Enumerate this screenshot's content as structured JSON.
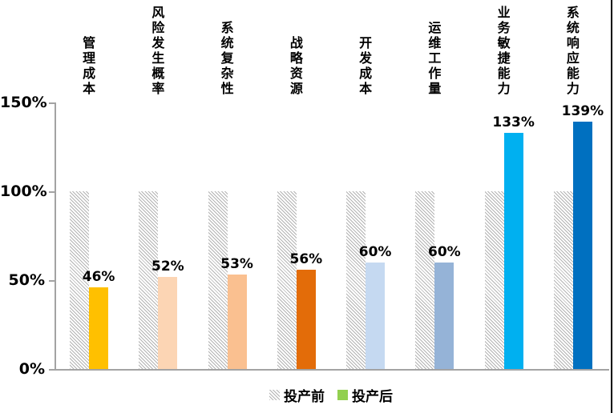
{
  "chart_data": {
    "type": "bar",
    "title": "",
    "categories": [
      "管理成本",
      "风险发生概率",
      "系统复杂性",
      "战略资源",
      "开发成本",
      "运维工作量",
      "业务敏捷能力",
      "系统响应能力"
    ],
    "series": [
      {
        "name": "投产前",
        "values": [
          100,
          100,
          100,
          100,
          100,
          100,
          100,
          100
        ],
        "style": "hatched",
        "hatch_color": "#B3B3B3"
      },
      {
        "name": "投产后",
        "values": [
          46,
          52,
          53,
          56,
          60,
          60,
          133,
          139
        ],
        "style": "solid",
        "colors": [
          "#FFC000",
          "#FCD5B4",
          "#FAC090",
          "#E36C09",
          "#C5D9F1",
          "#95B3D7",
          "#00B0F0",
          "#0070C0"
        ]
      }
    ],
    "value_labels": [
      "46%",
      "52%",
      "53%",
      "56%",
      "60%",
      "60%",
      "133%",
      "139%"
    ],
    "xlabel": "",
    "ylabel": "",
    "ylim": [
      0,
      150
    ],
    "y_ticks": [
      {
        "value": 0,
        "label": "0%"
      },
      {
        "value": 50,
        "label": "50%"
      },
      {
        "value": 100,
        "label": "100%"
      },
      {
        "value": 150,
        "label": "150%"
      }
    ],
    "grid": false,
    "legend": {
      "position": "bottom",
      "items": [
        {
          "label": "投产前",
          "swatch": "hatch"
        },
        {
          "label": "投产后",
          "swatch": "color",
          "color": "#92D050"
        }
      ]
    },
    "axis_color": "#A3A3A3",
    "label_color": "#000000"
  },
  "frame": {
    "right_border_color": "#000000"
  }
}
